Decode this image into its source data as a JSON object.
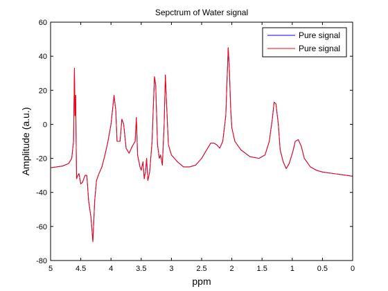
{
  "chart_data": {
    "type": "line",
    "title": "Sepctrum of Water signal",
    "xlabel": "ppm",
    "ylabel": "Amplitude (a.u.)",
    "xlim": [
      5,
      0
    ],
    "x_reversed": true,
    "ylim": [
      -80,
      60
    ],
    "xticks": [
      "5",
      "4.5",
      "4",
      "3.5",
      "3",
      "2.5",
      "2",
      "1.5",
      "1",
      "0.5",
      "0"
    ],
    "yticks": [
      "-80",
      "-60",
      "-40",
      "-20",
      "0",
      "20",
      "40",
      "60"
    ],
    "grid": false,
    "legend_position": "top-right",
    "series": [
      {
        "name": "Pure signal",
        "color": "#0000ff",
        "points": [
          [
            5,
            -25.5
          ],
          [
            4.9,
            -25
          ],
          [
            4.8,
            -24.5
          ],
          [
            4.7,
            -23
          ],
          [
            4.65,
            -20
          ],
          [
            4.62,
            -10
          ],
          [
            4.605,
            33
          ],
          [
            4.595,
            5
          ],
          [
            4.585,
            17
          ],
          [
            4.57,
            -32
          ],
          [
            4.55,
            -30
          ],
          [
            4.53,
            -29
          ],
          [
            4.5,
            -35
          ],
          [
            4.47,
            -34
          ],
          [
            4.43,
            -30
          ],
          [
            4.4,
            -30
          ],
          [
            4.37,
            -45
          ],
          [
            4.33,
            -55
          ],
          [
            4.3,
            -69
          ],
          [
            4.27,
            -45
          ],
          [
            4.24,
            -33
          ],
          [
            4.2,
            -29
          ],
          [
            4.15,
            -25
          ],
          [
            4.1,
            -18
          ],
          [
            4.05,
            -10
          ],
          [
            4.0,
            0
          ],
          [
            3.97,
            10
          ],
          [
            3.95,
            17
          ],
          [
            3.92,
            8
          ],
          [
            3.9,
            -10
          ],
          [
            3.85,
            -10
          ],
          [
            3.82,
            3
          ],
          [
            3.79,
            0
          ],
          [
            3.75,
            -14
          ],
          [
            3.7,
            -17
          ],
          [
            3.65,
            -13
          ],
          [
            3.6,
            -10
          ],
          [
            3.58,
            4
          ],
          [
            3.56,
            -18
          ],
          [
            3.52,
            -25
          ],
          [
            3.5,
            -27
          ],
          [
            3.47,
            -22
          ],
          [
            3.45,
            -32
          ],
          [
            3.43,
            -28
          ],
          [
            3.41,
            -20
          ],
          [
            3.39,
            -33
          ],
          [
            3.36,
            -28
          ],
          [
            3.32,
            -10
          ],
          [
            3.3,
            10
          ],
          [
            3.28,
            28
          ],
          [
            3.26,
            23
          ],
          [
            3.23,
            -12
          ],
          [
            3.2,
            -20
          ],
          [
            3.18,
            -18
          ],
          [
            3.15,
            -24
          ],
          [
            3.12,
            0
          ],
          [
            3.1,
            29
          ],
          [
            3.08,
            12
          ],
          [
            3.05,
            -12
          ],
          [
            3.0,
            -18
          ],
          [
            2.9,
            -22
          ],
          [
            2.8,
            -25
          ],
          [
            2.7,
            -25
          ],
          [
            2.6,
            -24
          ],
          [
            2.5,
            -20
          ],
          [
            2.4,
            -14
          ],
          [
            2.35,
            -11
          ],
          [
            2.3,
            -11
          ],
          [
            2.25,
            -12
          ],
          [
            2.2,
            -14
          ],
          [
            2.15,
            -10
          ],
          [
            2.1,
            5
          ],
          [
            2.08,
            25
          ],
          [
            2.06,
            45
          ],
          [
            2.04,
            32
          ],
          [
            2.02,
            10
          ],
          [
            2.0,
            -2
          ],
          [
            1.95,
            -10
          ],
          [
            1.85,
            -15
          ],
          [
            1.7,
            -19
          ],
          [
            1.55,
            -20
          ],
          [
            1.45,
            -18
          ],
          [
            1.38,
            -10
          ],
          [
            1.33,
            3
          ],
          [
            1.3,
            13
          ],
          [
            1.27,
            12
          ],
          [
            1.23,
            0
          ],
          [
            1.2,
            -15
          ],
          [
            1.15,
            -22
          ],
          [
            1.1,
            -26
          ],
          [
            1.05,
            -23
          ],
          [
            0.99,
            -16
          ],
          [
            0.95,
            -10
          ],
          [
            0.9,
            -9
          ],
          [
            0.85,
            -13
          ],
          [
            0.8,
            -20
          ],
          [
            0.7,
            -25
          ],
          [
            0.6,
            -27
          ],
          [
            0.5,
            -28
          ],
          [
            0.4,
            -28.5
          ],
          [
            0.3,
            -29
          ],
          [
            0.2,
            -29.5
          ],
          [
            0.1,
            -30
          ],
          [
            0,
            -30.5
          ]
        ]
      },
      {
        "name": "Pure signal",
        "color": "#ff0000",
        "points": [
          [
            5,
            -25.5
          ],
          [
            4.9,
            -25
          ],
          [
            4.8,
            -24.5
          ],
          [
            4.7,
            -23
          ],
          [
            4.65,
            -20
          ],
          [
            4.62,
            -10
          ],
          [
            4.605,
            33
          ],
          [
            4.595,
            5
          ],
          [
            4.585,
            17
          ],
          [
            4.57,
            -32
          ],
          [
            4.55,
            -30
          ],
          [
            4.53,
            -29
          ],
          [
            4.5,
            -35
          ],
          [
            4.47,
            -34
          ],
          [
            4.43,
            -30
          ],
          [
            4.4,
            -30
          ],
          [
            4.37,
            -45
          ],
          [
            4.33,
            -55
          ],
          [
            4.3,
            -69
          ],
          [
            4.27,
            -45
          ],
          [
            4.24,
            -33
          ],
          [
            4.2,
            -29
          ],
          [
            4.15,
            -25
          ],
          [
            4.1,
            -18
          ],
          [
            4.05,
            -10
          ],
          [
            4.0,
            0
          ],
          [
            3.97,
            10
          ],
          [
            3.95,
            17
          ],
          [
            3.92,
            8
          ],
          [
            3.9,
            -10
          ],
          [
            3.85,
            -10
          ],
          [
            3.82,
            3
          ],
          [
            3.79,
            0
          ],
          [
            3.75,
            -14
          ],
          [
            3.7,
            -17
          ],
          [
            3.65,
            -13
          ],
          [
            3.6,
            -10
          ],
          [
            3.58,
            4
          ],
          [
            3.56,
            -18
          ],
          [
            3.52,
            -25
          ],
          [
            3.5,
            -27
          ],
          [
            3.47,
            -22
          ],
          [
            3.45,
            -32
          ],
          [
            3.43,
            -28
          ],
          [
            3.41,
            -20
          ],
          [
            3.39,
            -33
          ],
          [
            3.36,
            -28
          ],
          [
            3.32,
            -10
          ],
          [
            3.3,
            10
          ],
          [
            3.28,
            28
          ],
          [
            3.26,
            23
          ],
          [
            3.23,
            -12
          ],
          [
            3.2,
            -20
          ],
          [
            3.18,
            -18
          ],
          [
            3.15,
            -24
          ],
          [
            3.12,
            0
          ],
          [
            3.1,
            29
          ],
          [
            3.08,
            12
          ],
          [
            3.05,
            -12
          ],
          [
            3.0,
            -18
          ],
          [
            2.9,
            -22
          ],
          [
            2.8,
            -25
          ],
          [
            2.7,
            -25
          ],
          [
            2.6,
            -24
          ],
          [
            2.5,
            -20
          ],
          [
            2.4,
            -14
          ],
          [
            2.35,
            -11
          ],
          [
            2.3,
            -11
          ],
          [
            2.25,
            -12
          ],
          [
            2.2,
            -14
          ],
          [
            2.15,
            -10
          ],
          [
            2.1,
            5
          ],
          [
            2.08,
            25
          ],
          [
            2.06,
            45
          ],
          [
            2.04,
            32
          ],
          [
            2.02,
            10
          ],
          [
            2.0,
            -2
          ],
          [
            1.95,
            -10
          ],
          [
            1.85,
            -15
          ],
          [
            1.7,
            -19
          ],
          [
            1.55,
            -20
          ],
          [
            1.45,
            -18
          ],
          [
            1.38,
            -10
          ],
          [
            1.33,
            3
          ],
          [
            1.3,
            13
          ],
          [
            1.27,
            12
          ],
          [
            1.23,
            0
          ],
          [
            1.2,
            -15
          ],
          [
            1.15,
            -22
          ],
          [
            1.1,
            -26
          ],
          [
            1.05,
            -23
          ],
          [
            0.99,
            -16
          ],
          [
            0.95,
            -10
          ],
          [
            0.9,
            -9
          ],
          [
            0.85,
            -13
          ],
          [
            0.8,
            -20
          ],
          [
            0.7,
            -25
          ],
          [
            0.6,
            -27
          ],
          [
            0.5,
            -28
          ],
          [
            0.4,
            -28.5
          ],
          [
            0.3,
            -29
          ],
          [
            0.2,
            -29.5
          ],
          [
            0.1,
            -30
          ],
          [
            0,
            -30.5
          ]
        ]
      }
    ]
  }
}
